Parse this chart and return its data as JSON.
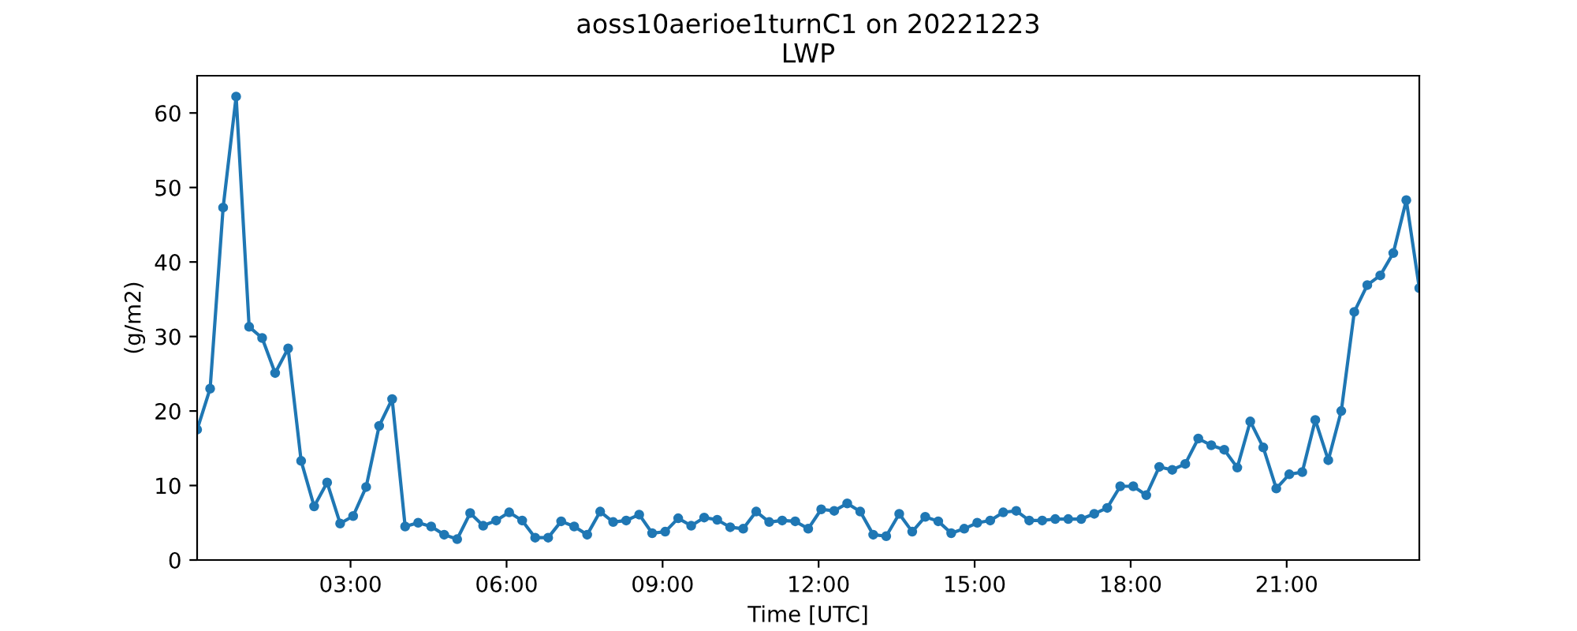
{
  "chart_data": {
    "type": "line",
    "title": "aoss10aerioe1turnC1 on 20221223",
    "subtitle": "LWP",
    "xlabel": "Time [UTC]",
    "ylabel": "(g/m2)",
    "x": [
      0.05,
      0.3,
      0.55,
      0.8,
      1.05,
      1.3,
      1.55,
      1.8,
      2.05,
      2.3,
      2.55,
      2.8,
      3.05,
      3.3,
      3.55,
      3.8,
      4.05,
      4.3,
      4.55,
      4.8,
      5.05,
      5.3,
      5.55,
      5.8,
      6.05,
      6.3,
      6.55,
      6.8,
      7.05,
      7.3,
      7.55,
      7.8,
      8.05,
      8.3,
      8.55,
      8.8,
      9.05,
      9.3,
      9.55,
      9.8,
      10.05,
      10.3,
      10.55,
      10.8,
      11.05,
      11.3,
      11.55,
      11.8,
      12.05,
      12.3,
      12.55,
      12.8,
      13.05,
      13.3,
      13.55,
      13.8,
      14.05,
      14.3,
      14.55,
      14.8,
      15.05,
      15.3,
      15.55,
      15.8,
      16.05,
      16.3,
      16.55,
      16.8,
      17.05,
      17.3,
      17.55,
      17.8,
      18.05,
      18.3,
      18.55,
      18.8,
      19.05,
      19.3,
      19.55,
      19.8,
      20.05,
      20.3,
      20.55,
      20.8,
      21.05,
      21.3,
      21.55,
      21.8,
      22.05,
      22.3,
      22.55,
      22.8,
      23.05,
      23.3,
      23.55
    ],
    "series": [
      {
        "color": "#1f77b4",
        "values": [
          17.5,
          23,
          47.3,
          62.2,
          31.3,
          29.8,
          25.1,
          28.4,
          13.3,
          7.2,
          10.4,
          4.9,
          5.9,
          9.8,
          18.0,
          21.6,
          4.5,
          5.0,
          4.5,
          3.4,
          2.8,
          6.3,
          4.6,
          5.3,
          6.4,
          5.3,
          3.0,
          3.0,
          5.2,
          4.5,
          3.4,
          6.5,
          5.1,
          5.3,
          6.1,
          3.6,
          3.8,
          5.6,
          4.6,
          5.7,
          5.4,
          4.4,
          4.2,
          6.5,
          5.1,
          5.3,
          5.2,
          4.2,
          6.8,
          6.6,
          7.6,
          6.5,
          3.4,
          3.2,
          6.2,
          3.8,
          5.8,
          5.2,
          3.6,
          4.2,
          5.0,
          5.3,
          6.4,
          6.6,
          5.3,
          5.3,
          5.5,
          5.5,
          5.5,
          6.2,
          7.0,
          9.9,
          9.9,
          8.7,
          12.5,
          12.1,
          12.9,
          16.3,
          15.4,
          14.8,
          12.4,
          18.6,
          15.1,
          9.6,
          11.5,
          11.8,
          18.8,
          13.4,
          20.0,
          33.3,
          36.9,
          38.2,
          41.2,
          48.3,
          36.5
        ]
      }
    ],
    "xlim": [
      0.05,
      23.55
    ],
    "ylim": [
      0,
      65
    ],
    "xticks": [
      {
        "value": 3,
        "label": "03:00"
      },
      {
        "value": 6,
        "label": "06:00"
      },
      {
        "value": 9,
        "label": "09:00"
      },
      {
        "value": 12,
        "label": "12:00"
      },
      {
        "value": 15,
        "label": "15:00"
      },
      {
        "value": 18,
        "label": "18:00"
      },
      {
        "value": 21,
        "label": "21:00"
      }
    ],
    "yticks": [
      0,
      10,
      20,
      30,
      40,
      50,
      60
    ],
    "marker": "circle",
    "line_style": "solid",
    "grid": false,
    "legend": false
  }
}
